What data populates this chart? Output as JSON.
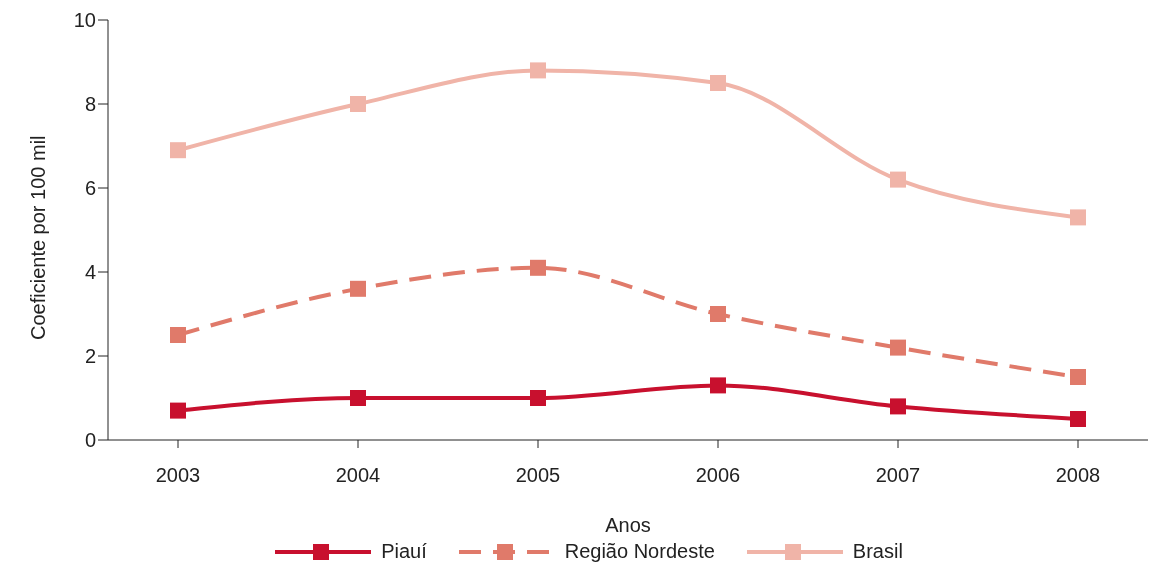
{
  "chart_data": {
    "type": "line",
    "xlabel": "Anos",
    "ylabel": "Coeficiente por 100 mil",
    "categories": [
      "2003",
      "2004",
      "2005",
      "2006",
      "2007",
      "2008"
    ],
    "ylim": [
      0,
      10
    ],
    "yticks": [
      0,
      2,
      4,
      6,
      8,
      10
    ],
    "grid": false,
    "legend": "bottom",
    "marker": "square",
    "series": [
      {
        "name": "Piauí",
        "color": "#c8102e",
        "line_style": "solid",
        "values": [
          0.7,
          1.0,
          1.0,
          1.3,
          0.8,
          0.5
        ]
      },
      {
        "name": "Região Nordeste",
        "color": "#e07a6a",
        "line_style": "dashed",
        "values": [
          2.5,
          3.6,
          4.1,
          3.0,
          2.2,
          1.5
        ]
      },
      {
        "name": "Brasil",
        "color": "#f0b4a8",
        "line_style": "solid",
        "values": [
          6.9,
          8.0,
          8.8,
          8.5,
          6.2,
          5.3
        ]
      }
    ]
  }
}
